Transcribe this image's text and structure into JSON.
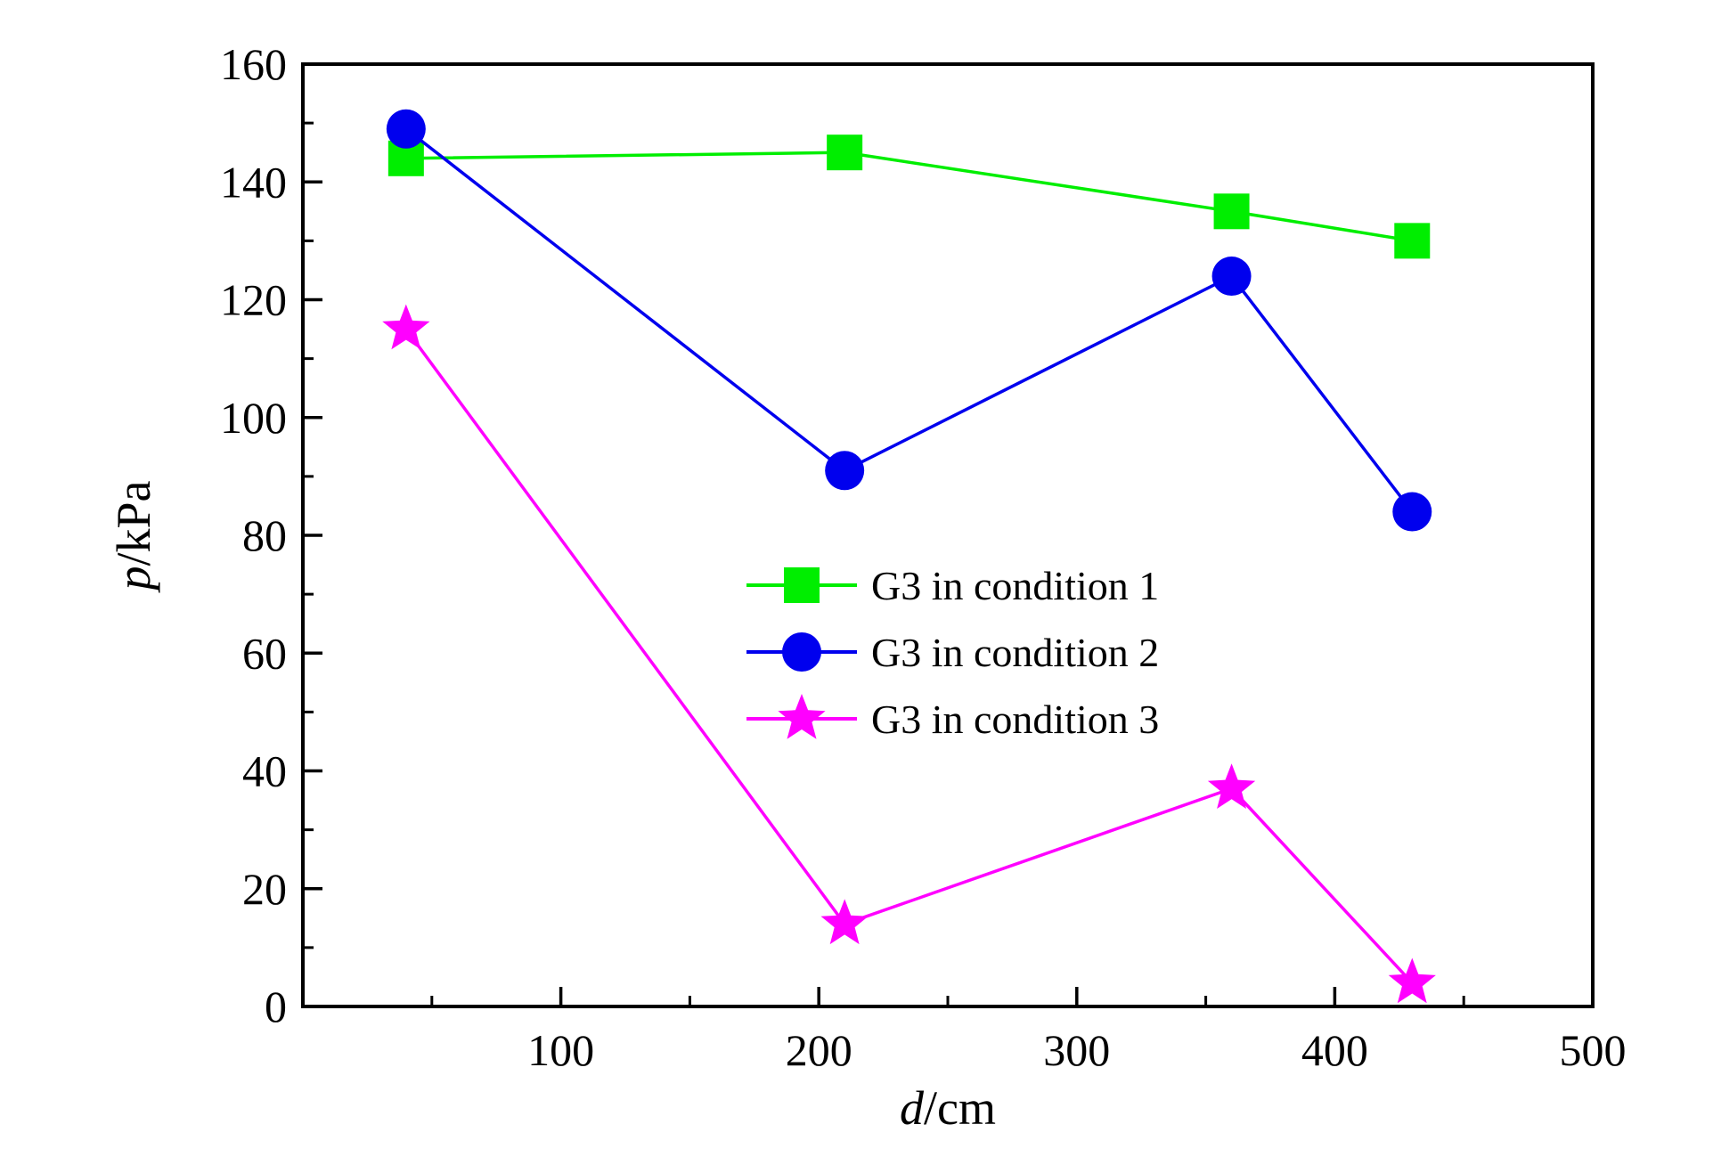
{
  "chart_data": {
    "type": "line",
    "title": "",
    "xlabel": {
      "var": "d",
      "unit": "/cm"
    },
    "ylabel": {
      "var": "p",
      "unit": "/kPa"
    },
    "xlim": [
      0,
      500
    ],
    "ylim": [
      0,
      160
    ],
    "xticks": [
      100,
      200,
      300,
      400,
      500
    ],
    "yticks": [
      0,
      20,
      40,
      60,
      80,
      100,
      120,
      140,
      160
    ],
    "xtick_labels": [
      "100",
      "200",
      "300",
      "400",
      "500"
    ],
    "ytick_labels": [
      "0",
      "20",
      "40",
      "60",
      "80",
      "100",
      "120",
      "140",
      "160"
    ],
    "grid": false,
    "legend_position": "center",
    "series": [
      {
        "name": "G3 in condition 1",
        "color": "#00ee00",
        "marker": "square",
        "x": [
          40,
          210,
          360,
          430
        ],
        "y": [
          144,
          145,
          135,
          130
        ]
      },
      {
        "name": "G3 in condition 2",
        "color": "#0000ee",
        "marker": "circle",
        "x": [
          40,
          210,
          360,
          430
        ],
        "y": [
          149,
          91,
          124,
          84
        ]
      },
      {
        "name": "G3 in condition 3",
        "color": "#ff00ff",
        "marker": "star",
        "x": [
          40,
          210,
          360,
          430
        ],
        "y": [
          115,
          14,
          37,
          4
        ]
      }
    ]
  }
}
